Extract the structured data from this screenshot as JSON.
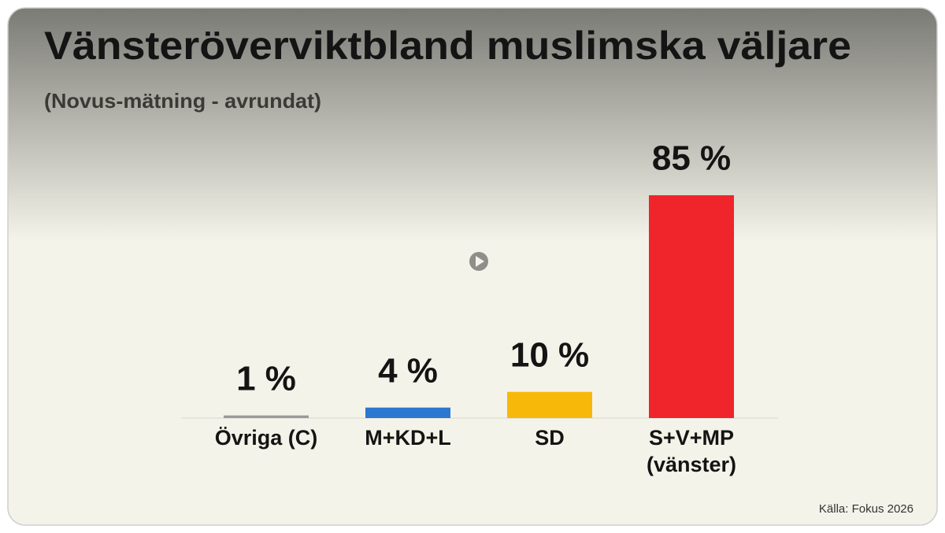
{
  "chart_data": {
    "type": "bar",
    "title": "Vänsteröverviktbland muslimska väljare",
    "subtitle": "(Novus-mätning - avrundat)",
    "categories": [
      "Övriga (C)",
      "M+KD+L",
      "SD",
      "S+V+MP (vänster)"
    ],
    "values": [
      1,
      4,
      10,
      85
    ],
    "value_labels": [
      "1 %",
      "4 %",
      "10 %",
      "85 %"
    ],
    "colors": [
      "#9a9a9a",
      "#2a78cf",
      "#f7b80a",
      "#f0242b"
    ],
    "source": "Källa: Fokus 2026"
  }
}
